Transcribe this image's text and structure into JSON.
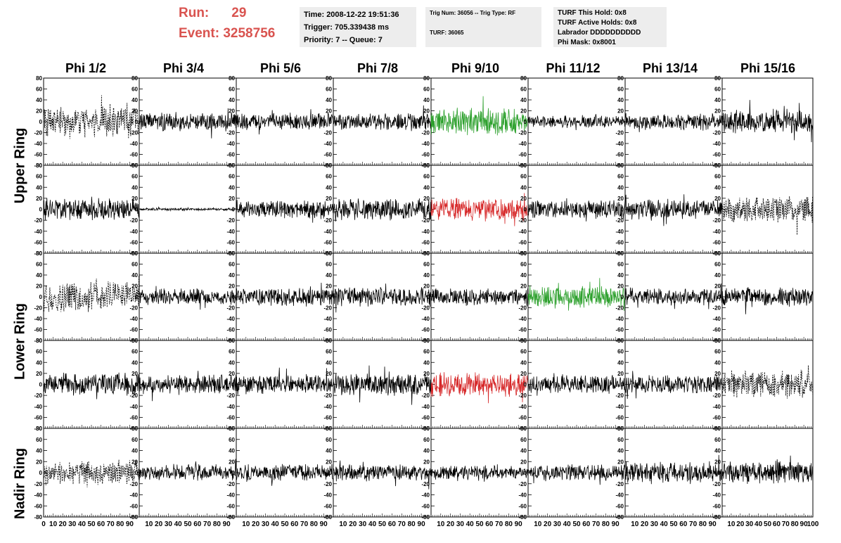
{
  "header": {
    "run_label": "Run:",
    "run_value": "29",
    "event_label": "Event:",
    "event_value": "3258756",
    "time": "Time: 2008-12-22 19:51:36",
    "trigger": "Trigger: 705.339438 ms",
    "priority": "Priority: 7 -- Queue: 7",
    "trig_num": "Trig Num: 36056 -- Trig Type: RF",
    "turf": "TURF: 36065",
    "turf_hold": "TURF This Hold: 0x8",
    "turf_active": "TURF Active Holds: 0x8",
    "labrador": "Labrador DDDDDDDDDD",
    "phi_mask": "Phi Mask: 0x8001"
  },
  "colors": {
    "run_text": "#d9534f",
    "normal_trace": "#000000",
    "green_trace": "#2ca02c",
    "red_trace": "#d62728",
    "info_bg": "#ededed"
  },
  "chart_data": {
    "type": "line",
    "columns": [
      "Phi 1/2",
      "Phi 3/4",
      "Phi 5/6",
      "Phi 7/8",
      "Phi 9/10",
      "Phi 11/12",
      "Phi 13/14",
      "Phi 15/16"
    ],
    "rings": [
      "Upper Ring",
      "Lower Ring",
      "Nadir Ring"
    ],
    "ylim": [
      -80,
      80
    ],
    "y_ticks": [
      -80,
      -60,
      -40,
      -20,
      0,
      20,
      40,
      60,
      80
    ],
    "y_tick_labels": [
      "-80",
      "-60",
      "-40",
      "-20",
      "0",
      "20",
      "40",
      "60",
      "80"
    ],
    "xlim": [
      0,
      100
    ],
    "x_tick_labels_first": [
      "0",
      "10",
      "20",
      "30",
      "40",
      "50",
      "60",
      "70",
      "80",
      "90"
    ],
    "x_tick_labels_other": [
      "10",
      "20",
      "30",
      "40",
      "50",
      "60",
      "70",
      "80",
      "90"
    ],
    "x_end_label": "100",
    "x_last_label_short": "100",
    "x_last_label_joined": "10",
    "panel_rows": 5,
    "traces": [
      [
        {
          "style": "dashed",
          "color": "black",
          "amp": 22
        },
        {
          "style": "solid",
          "color": "black",
          "amp": 14
        },
        {
          "style": "solid",
          "color": "black",
          "amp": 12
        },
        {
          "style": "solid",
          "color": "black",
          "amp": 12
        },
        {
          "style": "solid",
          "color": "green",
          "amp": 20
        },
        {
          "style": "solid",
          "color": "black",
          "amp": 9
        },
        {
          "style": "solid",
          "color": "black",
          "amp": 12
        },
        {
          "style": "solid",
          "color": "black",
          "amp": 18
        }
      ],
      [
        {
          "style": "solid",
          "color": "black",
          "amp": 16
        },
        {
          "style": "solid",
          "color": "black",
          "amp": 2
        },
        {
          "style": "solid",
          "color": "black",
          "amp": 14
        },
        {
          "style": "solid",
          "color": "black",
          "amp": 16
        },
        {
          "style": "solid",
          "color": "red",
          "amp": 16
        },
        {
          "style": "solid",
          "color": "black",
          "amp": 14
        },
        {
          "style": "solid",
          "color": "black",
          "amp": 14
        },
        {
          "style": "dashed",
          "color": "black",
          "amp": 20
        }
      ],
      [
        {
          "style": "dashed",
          "color": "black",
          "amp": 22
        },
        {
          "style": "solid",
          "color": "black",
          "amp": 12
        },
        {
          "style": "solid",
          "color": "black",
          "amp": 14
        },
        {
          "style": "solid",
          "color": "black",
          "amp": 14
        },
        {
          "style": "solid",
          "color": "black",
          "amp": 12
        },
        {
          "style": "solid",
          "color": "green",
          "amp": 16
        },
        {
          "style": "solid",
          "color": "black",
          "amp": 12
        },
        {
          "style": "solid",
          "color": "black",
          "amp": 14
        }
      ],
      [
        {
          "style": "solid",
          "color": "black",
          "amp": 16
        },
        {
          "style": "solid",
          "color": "black",
          "amp": 14
        },
        {
          "style": "solid",
          "color": "black",
          "amp": 14
        },
        {
          "style": "solid",
          "color": "black",
          "amp": 16
        },
        {
          "style": "solid",
          "color": "red",
          "amp": 18
        },
        {
          "style": "solid",
          "color": "black",
          "amp": 14
        },
        {
          "style": "solid",
          "color": "black",
          "amp": 14
        },
        {
          "style": "dashed",
          "color": "black",
          "amp": 20
        }
      ],
      [
        {
          "style": "dashed",
          "color": "black",
          "amp": 18
        },
        {
          "style": "solid",
          "color": "black",
          "amp": 12
        },
        {
          "style": "solid",
          "color": "black",
          "amp": 12
        },
        {
          "style": "solid",
          "color": "black",
          "amp": 12
        },
        {
          "style": "solid",
          "color": "black",
          "amp": 10
        },
        {
          "style": "solid",
          "color": "black",
          "amp": 12
        },
        {
          "style": "solid",
          "color": "black",
          "amp": 16
        },
        {
          "style": "solid",
          "color": "black",
          "amp": 16
        }
      ]
    ]
  }
}
